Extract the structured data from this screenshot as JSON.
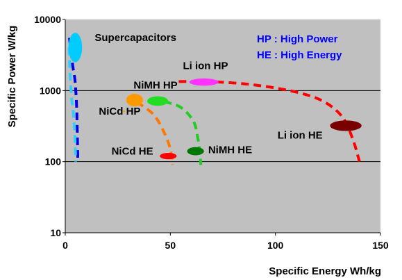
{
  "chart_data": {
    "type": "scatter",
    "x_axis": {
      "label": "Specific Energy Wh/kg",
      "range": [
        0,
        150
      ],
      "ticks": [
        0,
        50,
        100,
        150
      ],
      "tick_labels": [
        "0",
        "50",
        "100",
        "150"
      ]
    },
    "y_axis": {
      "label": "Specific Power W/kg",
      "scale": "log",
      "range": [
        10,
        10000
      ],
      "ticks": [
        10,
        100,
        1000,
        10000
      ],
      "tick_labels": [
        "10",
        "100",
        "1000",
        "10000"
      ]
    },
    "grid": "horizontal",
    "plot_background": "#c0c0c0",
    "legend_text": [
      "HP : High Power",
      "HE : High Energy"
    ],
    "legend_color": "#0000ff",
    "regions": [
      {
        "label": "Supercapacitors",
        "color": "#00ccff",
        "x": 4,
        "y": 4000,
        "x_span": [
          1.5,
          8
        ],
        "y_span": [
          2500,
          6500
        ],
        "label_at": {
          "x": 14,
          "y": 5000
        }
      },
      {
        "label": "Li ion HP",
        "color": "#ff33ff",
        "x": 66,
        "y": 1320,
        "x_span": [
          59,
          73
        ],
        "y_span": [
          1170,
          1480
        ],
        "label_at": {
          "x": 56,
          "y": 2000
        }
      },
      {
        "label": "NiMH HP",
        "color": "#22dd22",
        "x": 44,
        "y": 710,
        "x_span": [
          39,
          49
        ],
        "y_span": [
          610,
          830
        ],
        "label_at": {
          "x": 32.5,
          "y": 1060
        }
      },
      {
        "label": "",
        "color": "#ff9900",
        "x": 33,
        "y": 740,
        "x_span": [
          29,
          37
        ],
        "y_span": [
          600,
          900
        ],
        "label_at": null
      },
      {
        "label": "NiCd HP",
        "color": "#ff9900",
        "x": 28,
        "y": 510,
        "x_span": [
          27.5,
          28.5
        ],
        "y_span": [
          495,
          525
        ],
        "label_at": {
          "x": 16,
          "y": 460
        }
      },
      {
        "label": "Li ion HE",
        "color": "#7a0000",
        "x": 133,
        "y": 320,
        "x_span": [
          126,
          141
        ],
        "y_span": [
          270,
          380
        ],
        "label_at": {
          "x": 101,
          "y": 210
        }
      },
      {
        "label": "NiMH HE",
        "color": "#007700",
        "x": 62,
        "y": 140,
        "x_span": [
          58,
          66
        ],
        "y_span": [
          123,
          160
        ],
        "label_at": {
          "x": 68,
          "y": 132
        }
      },
      {
        "label": "NiCd HE",
        "color": "#ff0000",
        "x": 49,
        "y": 120,
        "x_span": [
          45,
          53
        ],
        "y_span": [
          108,
          133
        ],
        "label_at": {
          "x": 22,
          "y": 125
        }
      }
    ],
    "dashed_curves": [
      {
        "color": "#ff0000",
        "points": [
          [
            54,
            1340
          ],
          [
            70,
            1330
          ],
          [
            90,
            1200
          ],
          [
            110,
            950
          ],
          [
            123,
            700
          ],
          [
            132,
            420
          ],
          [
            137,
            200
          ],
          [
            140,
            100
          ]
        ]
      },
      {
        "color": "#22cc22",
        "points": [
          [
            47,
            700
          ],
          [
            55,
            580
          ],
          [
            61,
            370
          ],
          [
            63,
            220
          ],
          [
            64,
            140
          ],
          [
            64.5,
            90
          ]
        ]
      },
      {
        "color": "#ff7700",
        "points": [
          [
            34,
            690
          ],
          [
            42,
            460
          ],
          [
            47,
            260
          ],
          [
            50,
            150
          ],
          [
            51,
            90
          ]
        ]
      },
      {
        "color": "#0000ee",
        "points": [
          [
            2,
            5500
          ],
          [
            3.5,
            2300
          ],
          [
            4.5,
            1500
          ],
          [
            5,
            1000
          ],
          [
            5.5,
            500
          ],
          [
            6,
            100
          ]
        ]
      },
      {
        "color": "#33ccff",
        "points": [
          [
            1.8,
            4000
          ],
          [
            2.4,
            1500
          ],
          [
            3,
            800
          ],
          [
            3.8,
            500
          ],
          [
            4.5,
            250
          ],
          [
            5,
            100
          ]
        ]
      }
    ]
  }
}
